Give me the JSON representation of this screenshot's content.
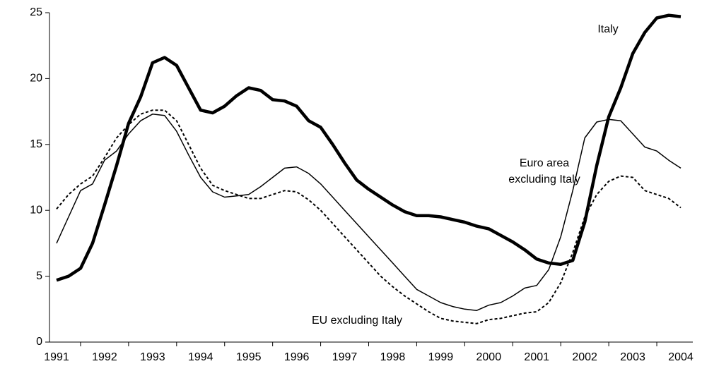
{
  "chart_data": {
    "type": "line",
    "categories": [
      "1991",
      null,
      null,
      null,
      "1992",
      null,
      null,
      null,
      "1993",
      null,
      null,
      null,
      "1994",
      null,
      null,
      null,
      "1995",
      null,
      null,
      null,
      "1996",
      null,
      null,
      null,
      "1997",
      null,
      null,
      null,
      "1998",
      null,
      null,
      null,
      "1999",
      null,
      null,
      null,
      "2000",
      null,
      null,
      null,
      "2001",
      null,
      null,
      null,
      "2002",
      null,
      null,
      null,
      "2003",
      null,
      null,
      null,
      "2004"
    ],
    "ylim": [
      0,
      25
    ],
    "yticks": [
      0,
      5,
      10,
      15,
      20,
      25
    ],
    "grid": false,
    "series": [
      {
        "name": "Italy",
        "color": "#000000",
        "style": "thick",
        "values": [
          4.7,
          5.0,
          5.6,
          7.5,
          10.4,
          13.4,
          16.6,
          18.6,
          21.2,
          21.6,
          21.0,
          19.3,
          17.6,
          17.4,
          17.9,
          18.7,
          19.3,
          19.1,
          18.4,
          18.3,
          17.9,
          16.8,
          16.3,
          15.0,
          13.6,
          12.3,
          11.6,
          11.0,
          10.4,
          9.9,
          9.6,
          9.6,
          9.5,
          9.3,
          9.1,
          8.8,
          8.6,
          8.1,
          7.6,
          7.0,
          6.3,
          6.0,
          5.9,
          6.2,
          9.1,
          13.4,
          17.1,
          19.3,
          21.9,
          23.5,
          24.6,
          24.8,
          24.7
        ]
      },
      {
        "name": "Euro area excluding Italy",
        "color": "#000000",
        "style": "thin",
        "values": [
          7.5,
          9.5,
          11.5,
          12.0,
          13.8,
          14.5,
          15.8,
          16.8,
          17.3,
          17.2,
          16.0,
          14.2,
          12.5,
          11.4,
          11.0,
          11.1,
          11.2,
          11.8,
          12.5,
          13.2,
          13.3,
          12.8,
          12.0,
          11.0,
          10.0,
          9.0,
          8.0,
          7.0,
          6.0,
          5.0,
          4.0,
          3.5,
          3.0,
          2.7,
          2.5,
          2.4,
          2.8,
          3.0,
          3.5,
          4.1,
          4.3,
          5.5,
          8.0,
          11.5,
          15.5,
          16.7,
          16.9,
          16.8,
          15.8,
          14.8,
          14.5,
          13.8,
          13.2
        ]
      },
      {
        "name": "EU excluding Italy",
        "color": "#000000",
        "style": "dotted",
        "values": [
          10.1,
          11.2,
          12.0,
          12.6,
          14.0,
          15.5,
          16.5,
          17.3,
          17.6,
          17.6,
          16.8,
          15.0,
          13.2,
          11.9,
          11.5,
          11.2,
          10.9,
          10.9,
          11.2,
          11.5,
          11.4,
          10.8,
          10.0,
          9.0,
          8.0,
          7.0,
          6.0,
          5.0,
          4.2,
          3.5,
          2.9,
          2.3,
          1.8,
          1.6,
          1.5,
          1.4,
          1.7,
          1.8,
          2.0,
          2.2,
          2.3,
          3.0,
          4.5,
          6.8,
          9.5,
          11.2,
          12.2,
          12.6,
          12.5,
          11.5,
          11.2,
          10.9,
          10.2
        ]
      }
    ]
  }
}
